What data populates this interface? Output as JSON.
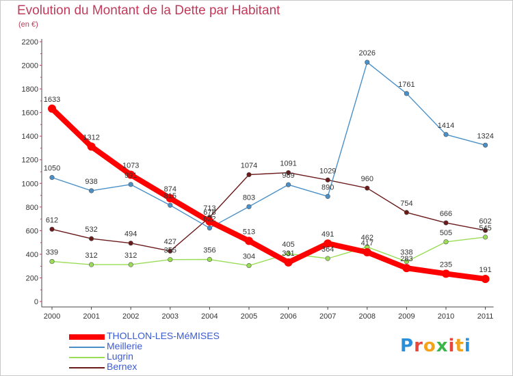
{
  "title": "Evolution du Montant de la Dette par Habitant",
  "subtitle": "(en €)",
  "logo": {
    "text": "Proxiti",
    "colors": [
      "#2a8fd8",
      "#e8463a",
      "#f3a21b",
      "#3bb54a",
      "#e8463a",
      "#f3a21b",
      "#2a8fd8"
    ]
  },
  "legend": [
    {
      "label": "THOLLON-LES-MéMISES",
      "color": "#ff0000"
    },
    {
      "label": "Meillerie",
      "color": "#4a90c8"
    },
    {
      "label": "Lugrin",
      "color": "#99dd55"
    },
    {
      "label": "Bernex",
      "color": "#6b1a1a"
    }
  ],
  "chart_data": {
    "type": "line",
    "title": "Evolution du Montant de la Dette par Habitant",
    "ylabel": "(en €)",
    "xlabel": "",
    "ylim": [
      0,
      2200
    ],
    "yticks": [
      0,
      200,
      400,
      600,
      800,
      1000,
      1200,
      1400,
      1600,
      1800,
      2000,
      2200
    ],
    "x": [
      "2000",
      "2001",
      "2002",
      "2003",
      "2004",
      "2005",
      "2006",
      "2007",
      "2008",
      "2009",
      "2010",
      "2011"
    ],
    "grid": false,
    "legend_position": "bottom",
    "series": [
      {
        "name": "THOLLON-LES-MéMISES",
        "color": "#ff0000",
        "values": [
          1633,
          1312,
          1073,
          874,
          678,
          513,
          331,
          491,
          417,
          283,
          235,
          191
        ]
      },
      {
        "name": "Meillerie",
        "color": "#4a90c8",
        "values": [
          1050,
          938,
          991,
          815,
          622,
          803,
          989,
          890,
          2026,
          1761,
          1414,
          1324
        ]
      },
      {
        "name": "Lugrin",
        "color": "#99dd55",
        "values": [
          339,
          312,
          312,
          355,
          356,
          304,
          405,
          364,
          462,
          338,
          505,
          545
        ]
      },
      {
        "name": "Bernex",
        "color": "#6b1a1a",
        "values": [
          612,
          532,
          494,
          427,
          713,
          1074,
          1091,
          1029,
          960,
          754,
          666,
          602
        ]
      }
    ]
  }
}
